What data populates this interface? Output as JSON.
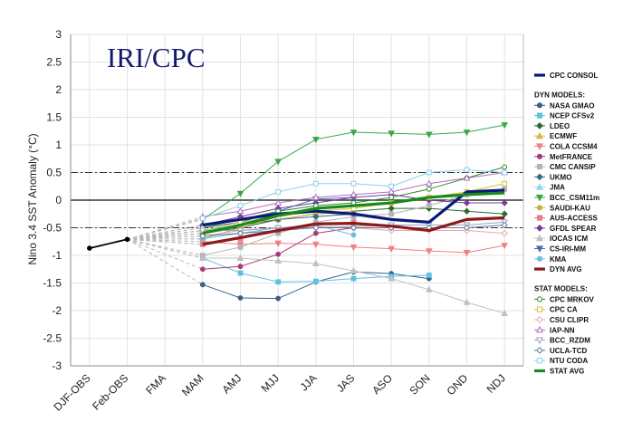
{
  "chart_data": {
    "type": "line",
    "title": "IRI/CPC",
    "ylabel": "Nino 3.4 SST Anomaly (°C)",
    "xlabel": "",
    "ylim": [
      -3,
      3
    ],
    "yticks": [
      "3",
      "2.5",
      "2",
      "1.5",
      "1",
      "0.5",
      "0",
      "-0.5",
      "-1",
      "-1.5",
      "-2",
      "-2.5",
      "-3"
    ],
    "categories": [
      "DJF-OBS",
      "Feb-OBS",
      "FMA",
      "MAM",
      "AMJ",
      "MJJ",
      "JJA",
      "JAS",
      "ASO",
      "SON",
      "OND",
      "NDJ"
    ],
    "reference_lines": [
      0.5,
      0,
      -0.5
    ],
    "observed": {
      "x": [
        "DJF-OBS",
        "Feb-OBS"
      ],
      "values": [
        -0.87,
        -0.71
      ],
      "color": "#000000"
    },
    "groups": [
      {
        "heading": "",
        "members": [
          "CPC CONSOL"
        ]
      },
      {
        "heading": "DYN MODELS:",
        "members": [
          "NASA GMAO",
          "NCEP CFSv2",
          "LDEO",
          "ECMWF",
          "COLA CCSM4",
          "MetFRANCE",
          "CMC CANSIP",
          "UKMO",
          "JMA",
          "BCC_CSM11m",
          "SAUDI-KAU",
          "AUS-ACCESS",
          "GFDL SPEAR",
          "IOCAS ICM",
          "CS-IRI-MM",
          "KMA",
          "DYN AVG"
        ]
      },
      {
        "heading": "STAT MODELS:",
        "members": [
          "CPC MRKOV",
          "CPC CA",
          "CSU CLIPR",
          "IAP-NN",
          "BCC_RZDM",
          "UCLA-TCD",
          "NTU CODA",
          "STAT AVG"
        ]
      }
    ],
    "series": [
      {
        "name": "CPC CONSOL",
        "color": "#0a1a7a",
        "marker": "none",
        "width": 3.2,
        "values": [
          null,
          null,
          null,
          -0.45,
          -0.35,
          -0.25,
          -0.2,
          -0.25,
          -0.35,
          -0.4,
          0.15,
          0.18
        ]
      },
      {
        "name": "NASA GMAO",
        "color": "#3a5f8a",
        "marker": "circle",
        "width": 1,
        "values": [
          null,
          null,
          null,
          -1.53,
          -1.77,
          -1.78,
          -1.48,
          -1.3,
          -1.33,
          -1.42,
          null,
          null
        ]
      },
      {
        "name": "NCEP CFSv2",
        "color": "#5bc2e0",
        "marker": "square",
        "width": 1,
        "values": [
          null,
          null,
          null,
          -1.05,
          -1.32,
          -1.48,
          -1.47,
          -1.42,
          -1.38,
          -1.36,
          null,
          null
        ]
      },
      {
        "name": "LDEO",
        "color": "#2e6b2e",
        "marker": "diamond",
        "width": 1,
        "values": [
          null,
          null,
          null,
          -0.55,
          -0.45,
          -0.35,
          -0.25,
          -0.2,
          -0.15,
          -0.15,
          -0.2,
          -0.25
        ]
      },
      {
        "name": "ECMWF",
        "color": "#d4b83a",
        "marker": "triangle",
        "width": 1,
        "values": [
          null,
          null,
          null,
          -0.6,
          -0.5,
          -0.35,
          -0.25,
          -0.2,
          null,
          null,
          null,
          null
        ]
      },
      {
        "name": "COLA CCSM4",
        "color": "#f08080",
        "marker": "triangle-down",
        "width": 1,
        "values": [
          null,
          null,
          null,
          -0.75,
          -0.8,
          -0.78,
          -0.8,
          -0.85,
          -0.88,
          -0.92,
          -0.95,
          -0.82
        ]
      },
      {
        "name": "MetFRANCE",
        "color": "#a83a7a",
        "marker": "circle",
        "width": 1,
        "values": [
          null,
          null,
          null,
          -1.25,
          -1.2,
          -0.98,
          -0.6,
          -0.5,
          null,
          null,
          null,
          null
        ]
      },
      {
        "name": "CMC CANSIP",
        "color": "#b5b5b5",
        "marker": "square",
        "width": 1,
        "values": [
          null,
          null,
          null,
          -1.0,
          -0.85,
          -0.6,
          -0.4,
          -0.3,
          -0.25,
          -0.1,
          0.1,
          0.2
        ]
      },
      {
        "name": "UKMO",
        "color": "#3a6a8a",
        "marker": "diamond",
        "width": 1,
        "values": [
          null,
          null,
          null,
          -0.6,
          -0.5,
          -0.35,
          -0.3,
          -0.25,
          null,
          null,
          null,
          null
        ]
      },
      {
        "name": "JMA",
        "color": "#8fd8e8",
        "marker": "triangle",
        "width": 1,
        "values": [
          null,
          null,
          null,
          -0.55,
          -0.45,
          -0.3,
          -0.15,
          -0.1,
          null,
          null,
          null,
          null
        ]
      },
      {
        "name": "BCC_CSM11m",
        "color": "#3aa84a",
        "marker": "triangle-down",
        "width": 1,
        "values": [
          null,
          null,
          null,
          -0.35,
          0.12,
          0.7,
          1.1,
          1.23,
          1.21,
          1.19,
          1.23,
          1.36
        ]
      },
      {
        "name": "SAUDI-KAU",
        "color": "#c8b040",
        "marker": "circle",
        "width": 1,
        "values": [
          null,
          null,
          null,
          -0.7,
          -0.5,
          -0.3,
          -0.15,
          -0.1,
          null,
          null,
          null,
          null
        ]
      },
      {
        "name": "AUS-ACCESS",
        "color": "#e87a8a",
        "marker": "square",
        "width": 1,
        "values": [
          null,
          null,
          null,
          -0.8,
          -0.7,
          -0.55,
          -0.45,
          -0.4,
          null,
          null,
          null,
          null
        ]
      },
      {
        "name": "GFDL SPEAR",
        "color": "#7a3a9a",
        "marker": "diamond",
        "width": 1,
        "values": [
          null,
          null,
          null,
          -0.45,
          -0.3,
          -0.15,
          -0.05,
          0.05,
          0.1,
          0.0,
          -0.05,
          -0.05
        ]
      },
      {
        "name": "IOCAS ICM",
        "color": "#c0c0c0",
        "marker": "triangle",
        "width": 1,
        "values": [
          null,
          null,
          null,
          -1.05,
          -1.05,
          -1.1,
          -1.15,
          -1.28,
          -1.42,
          -1.62,
          -1.85,
          -2.05
        ]
      },
      {
        "name": "CS-IRI-MM",
        "color": "#4a6ab0",
        "marker": "triangle-down",
        "width": 1,
        "values": [
          null,
          null,
          null,
          -0.5,
          -0.4,
          -0.2,
          0.02,
          0.05,
          null,
          null,
          null,
          null
        ]
      },
      {
        "name": "KMA",
        "color": "#6ac0e0",
        "marker": "circle",
        "width": 1,
        "values": [
          null,
          null,
          null,
          -0.7,
          -0.6,
          -0.5,
          -0.45,
          -0.63,
          null,
          null,
          null,
          null
        ]
      },
      {
        "name": "DYN AVG",
        "color": "#8b1a1a",
        "marker": "none",
        "width": 3.2,
        "values": [
          null,
          null,
          null,
          -0.8,
          -0.68,
          -0.55,
          -0.43,
          -0.42,
          -0.47,
          -0.55,
          -0.35,
          -0.32
        ]
      },
      {
        "name": "CPC MRKOV",
        "color": "#2e8b2e",
        "marker": "circle-open",
        "width": 1,
        "values": [
          null,
          null,
          null,
          -0.5,
          -0.35,
          -0.2,
          -0.1,
          -0.05,
          0.05,
          0.2,
          0.4,
          0.6
        ]
      },
      {
        "name": "CPC CA",
        "color": "#d4c040",
        "marker": "square-open",
        "width": 1,
        "values": [
          null,
          null,
          null,
          -0.55,
          -0.4,
          -0.3,
          -0.2,
          -0.15,
          -0.05,
          0.05,
          0.15,
          0.3
        ]
      },
      {
        "name": "CSU CLIPR",
        "color": "#f0a0b0",
        "marker": "diamond-open",
        "width": 1,
        "values": [
          null,
          null,
          null,
          -0.65,
          -0.55,
          -0.5,
          -0.48,
          -0.5,
          -0.55,
          -0.55,
          -0.55,
          -0.6
        ]
      },
      {
        "name": "IAP-NN",
        "color": "#b070c0",
        "marker": "triangle-open",
        "width": 1,
        "values": [
          null,
          null,
          null,
          -0.3,
          -0.2,
          -0.05,
          0.05,
          0.1,
          0.15,
          0.3,
          0.4,
          0.5
        ]
      },
      {
        "name": "BCC_RZDM",
        "color": "#a0a0c0",
        "marker": "triangle-down-open",
        "width": 1,
        "values": [
          null,
          null,
          null,
          -0.55,
          -0.55,
          -0.5,
          -0.5,
          -0.48,
          -0.45,
          -0.45,
          -0.45,
          -0.4
        ]
      },
      {
        "name": "UCLA-TCD",
        "color": "#5a7a9a",
        "marker": "diamond-open",
        "width": 1,
        "values": [
          null,
          null,
          null,
          -0.65,
          -0.6,
          -0.55,
          -0.5,
          -0.5,
          -0.5,
          -0.5,
          -0.5,
          -0.45
        ]
      },
      {
        "name": "NTU CODA",
        "color": "#8fd0e8",
        "marker": "square-open",
        "width": 1,
        "values": [
          null,
          null,
          null,
          -0.33,
          -0.1,
          0.15,
          0.3,
          0.3,
          0.25,
          0.5,
          0.55,
          0.5
        ]
      },
      {
        "name": "STAT AVG",
        "color": "#1a8a1a",
        "marker": "none",
        "width": 3.2,
        "values": [
          null,
          null,
          null,
          -0.6,
          -0.45,
          -0.28,
          -0.15,
          -0.1,
          -0.05,
          0.05,
          0.1,
          0.13
        ]
      }
    ]
  }
}
